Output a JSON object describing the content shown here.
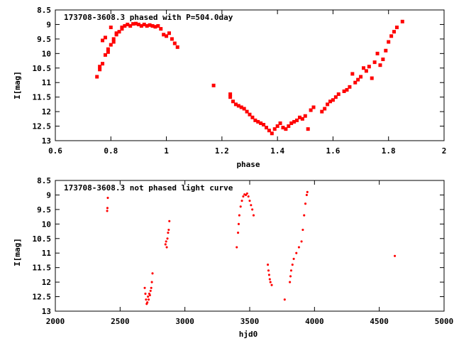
{
  "chart_data": [
    {
      "type": "scatter",
      "title": "173708-3608.3 phased with P=504.0day",
      "xlabel": "phase",
      "ylabel": "I[mag]",
      "xlim": [
        0.6,
        2
      ],
      "ylim": [
        8.5,
        13
      ],
      "y_inverted": true,
      "grid": false,
      "marker": "large",
      "color": "#ff0000",
      "xticks": [
        0.6,
        0.8,
        1,
        1.2,
        1.4,
        1.6,
        1.8,
        2
      ],
      "xtick_labels": [
        "0.6",
        "0.8",
        "1",
        "1.2",
        "1.4",
        "1.6",
        "1.8",
        "2"
      ],
      "yticks": [
        8.5,
        9,
        9.5,
        10,
        10.5,
        11,
        11.5,
        12,
        12.5,
        13
      ],
      "ytick_labels": [
        "8.5",
        "9",
        "9.5",
        "10",
        "10.5",
        "11",
        "11.5",
        "12",
        "12.5",
        "13"
      ],
      "points": [
        [
          0.75,
          10.8
        ],
        [
          0.76,
          10.55
        ],
        [
          0.76,
          10.45
        ],
        [
          0.77,
          10.35
        ],
        [
          0.77,
          9.55
        ],
        [
          0.78,
          9.45
        ],
        [
          0.78,
          10.05
        ],
        [
          0.79,
          9.95
        ],
        [
          0.79,
          9.85
        ],
        [
          0.8,
          9.7
        ],
        [
          0.8,
          9.1
        ],
        [
          0.81,
          9.6
        ],
        [
          0.81,
          9.5
        ],
        [
          0.82,
          9.35
        ],
        [
          0.82,
          9.3
        ],
        [
          0.83,
          9.25
        ],
        [
          0.84,
          9.15
        ],
        [
          0.84,
          9.1
        ],
        [
          0.85,
          9.05
        ],
        [
          0.86,
          9.0
        ],
        [
          0.87,
          9.05
        ],
        [
          0.88,
          8.98
        ],
        [
          0.89,
          8.97
        ],
        [
          0.9,
          9.0
        ],
        [
          0.91,
          9.05
        ],
        [
          0.92,
          9.0
        ],
        [
          0.93,
          9.05
        ],
        [
          0.94,
          9.02
        ],
        [
          0.95,
          9.05
        ],
        [
          0.96,
          9.08
        ],
        [
          0.97,
          9.05
        ],
        [
          0.98,
          9.15
        ],
        [
          0.99,
          9.35
        ],
        [
          1.0,
          9.4
        ],
        [
          1.01,
          9.3
        ],
        [
          1.02,
          9.5
        ],
        [
          1.03,
          9.65
        ],
        [
          1.04,
          9.78
        ],
        [
          1.17,
          11.1
        ],
        [
          1.23,
          11.4
        ],
        [
          1.23,
          11.5
        ],
        [
          1.24,
          11.65
        ],
        [
          1.25,
          11.75
        ],
        [
          1.26,
          11.8
        ],
        [
          1.27,
          11.85
        ],
        [
          1.28,
          11.9
        ],
        [
          1.29,
          12.0
        ],
        [
          1.3,
          12.1
        ],
        [
          1.31,
          12.2
        ],
        [
          1.32,
          12.3
        ],
        [
          1.33,
          12.35
        ],
        [
          1.34,
          12.4
        ],
        [
          1.35,
          12.45
        ],
        [
          1.36,
          12.55
        ],
        [
          1.37,
          12.65
        ],
        [
          1.38,
          12.75
        ],
        [
          1.39,
          12.6
        ],
        [
          1.4,
          12.5
        ],
        [
          1.41,
          12.4
        ],
        [
          1.42,
          12.55
        ],
        [
          1.43,
          12.6
        ],
        [
          1.44,
          12.5
        ],
        [
          1.45,
          12.4
        ],
        [
          1.46,
          12.35
        ],
        [
          1.47,
          12.3
        ],
        [
          1.48,
          12.2
        ],
        [
          1.49,
          12.25
        ],
        [
          1.5,
          12.15
        ],
        [
          1.51,
          12.6
        ],
        [
          1.52,
          11.95
        ],
        [
          1.53,
          11.85
        ],
        [
          1.56,
          12.0
        ],
        [
          1.57,
          11.9
        ],
        [
          1.58,
          11.75
        ],
        [
          1.59,
          11.65
        ],
        [
          1.6,
          11.6
        ],
        [
          1.61,
          11.5
        ],
        [
          1.62,
          11.4
        ],
        [
          1.64,
          11.3
        ],
        [
          1.65,
          11.25
        ],
        [
          1.66,
          11.15
        ],
        [
          1.67,
          10.7
        ],
        [
          1.68,
          11.0
        ],
        [
          1.69,
          10.9
        ],
        [
          1.7,
          10.8
        ],
        [
          1.71,
          10.5
        ],
        [
          1.72,
          10.6
        ],
        [
          1.73,
          10.45
        ],
        [
          1.74,
          10.85
        ],
        [
          1.75,
          10.3
        ],
        [
          1.76,
          10.0
        ],
        [
          1.77,
          10.4
        ],
        [
          1.78,
          10.2
        ],
        [
          1.79,
          9.9
        ],
        [
          1.8,
          9.6
        ],
        [
          1.81,
          9.4
        ],
        [
          1.82,
          9.25
        ],
        [
          1.83,
          9.1
        ],
        [
          1.85,
          8.9
        ]
      ]
    },
    {
      "type": "scatter",
      "title": "173708-3608.3 not phased light curve",
      "xlabel": "hjd0",
      "ylabel": "I[mag]",
      "xlim": [
        2000,
        5000
      ],
      "ylim": [
        8.5,
        13
      ],
      "y_inverted": true,
      "grid": false,
      "marker": "small",
      "color": "#ff0000",
      "xticks": [
        2000,
        2500,
        3000,
        3500,
        4000,
        4500,
        5000
      ],
      "xtick_labels": [
        "2000",
        "2500",
        "3000",
        "3500",
        "4000",
        "4500",
        "5000"
      ],
      "yticks": [
        8.5,
        9,
        9.5,
        10,
        10.5,
        11,
        11.5,
        12,
        12.5,
        13
      ],
      "ytick_labels": [
        "8.5",
        "9",
        "9.5",
        "10",
        "10.5",
        "11",
        "11.5",
        "12",
        "12.5",
        "13"
      ],
      "points": [
        [
          2400,
          9.55
        ],
        [
          2402,
          9.45
        ],
        [
          2405,
          9.1
        ],
        [
          2690,
          12.2
        ],
        [
          2695,
          12.4
        ],
        [
          2700,
          12.6
        ],
        [
          2705,
          12.75
        ],
        [
          2710,
          12.7
        ],
        [
          2715,
          12.5
        ],
        [
          2720,
          12.6
        ],
        [
          2725,
          12.4
        ],
        [
          2730,
          12.45
        ],
        [
          2735,
          12.3
        ],
        [
          2740,
          12.2
        ],
        [
          2745,
          12.0
        ],
        [
          2750,
          11.7
        ],
        [
          2850,
          10.7
        ],
        [
          2855,
          10.6
        ],
        [
          2860,
          10.8
        ],
        [
          2865,
          10.5
        ],
        [
          2870,
          10.3
        ],
        [
          2875,
          10.2
        ],
        [
          2880,
          9.9
        ],
        [
          3400,
          10.8
        ],
        [
          3410,
          10.3
        ],
        [
          3415,
          10.0
        ],
        [
          3420,
          9.7
        ],
        [
          3430,
          9.4
        ],
        [
          3440,
          9.2
        ],
        [
          3450,
          9.05
        ],
        [
          3460,
          8.98
        ],
        [
          3470,
          9.0
        ],
        [
          3480,
          8.95
        ],
        [
          3490,
          9.05
        ],
        [
          3500,
          9.2
        ],
        [
          3510,
          9.35
        ],
        [
          3520,
          9.5
        ],
        [
          3530,
          9.7
        ],
        [
          3640,
          11.4
        ],
        [
          3645,
          11.6
        ],
        [
          3650,
          11.75
        ],
        [
          3655,
          11.9
        ],
        [
          3660,
          12.0
        ],
        [
          3670,
          12.1
        ],
        [
          3770,
          12.6
        ],
        [
          3810,
          12.0
        ],
        [
          3815,
          11.8
        ],
        [
          3820,
          11.6
        ],
        [
          3830,
          11.4
        ],
        [
          3840,
          11.2
        ],
        [
          3860,
          11.0
        ],
        [
          3880,
          10.8
        ],
        [
          3900,
          10.6
        ],
        [
          3910,
          10.2
        ],
        [
          3920,
          9.7
        ],
        [
          3930,
          9.3
        ],
        [
          3940,
          9.0
        ],
        [
          3945,
          8.9
        ],
        [
          4620,
          11.1
        ]
      ]
    }
  ]
}
